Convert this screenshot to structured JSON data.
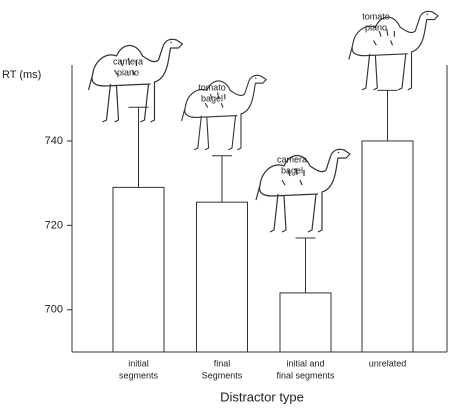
{
  "chart_data": {
    "type": "bar",
    "ylabel": "RT (ms)",
    "xlabel": "Distractor type",
    "categories": [
      [
        "initial",
        "segments"
      ],
      [
        "final",
        "Segments"
      ],
      [
        "initial and",
        "final segments"
      ],
      [
        "unrelated"
      ]
    ],
    "values": [
      729,
      725.5,
      704,
      740
    ],
    "errors": [
      19,
      11,
      13,
      12
    ],
    "color": "#ffffff",
    "ylim": [
      690,
      758
    ],
    "yticks": [
      700,
      720,
      740
    ],
    "annotations": [
      [
        "camera",
        "piano"
      ],
      [
        "tomato",
        "bagel"
      ],
      [
        "camera",
        "bagel"
      ],
      [
        "tomato",
        "piano"
      ]
    ]
  }
}
